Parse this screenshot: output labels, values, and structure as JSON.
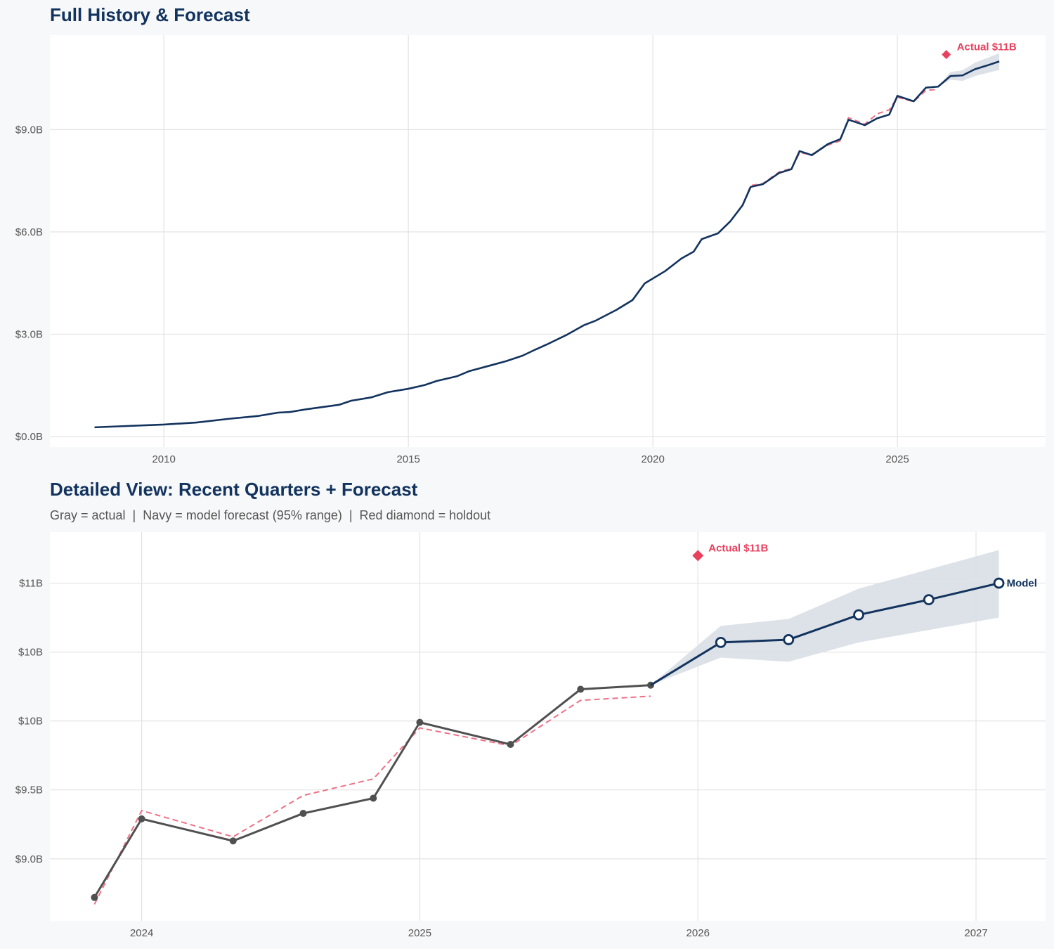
{
  "colors": {
    "background": "#f7f8fa",
    "navy": "#12335e",
    "red": "#e8415e",
    "gray": "#505050",
    "band": "#d9dfe6",
    "grid": "#e3e3e3"
  },
  "chart_data": [
    {
      "type": "line",
      "title": "Full History & Forecast",
      "xlim": [
        2007.67,
        2028.03
      ],
      "ylim": [
        -0.31,
        11.77
      ],
      "grid": true,
      "x_ticks": [
        {
          "value": 2010,
          "label": "2010"
        },
        {
          "value": 2015,
          "label": "2015"
        },
        {
          "value": 2020,
          "label": "2020"
        },
        {
          "value": 2025,
          "label": "2025"
        }
      ],
      "y_ticks": [
        {
          "value": 0,
          "label": "$0.0B"
        },
        {
          "value": 3,
          "label": "$3.0B"
        },
        {
          "value": 6,
          "label": "$6.0B"
        },
        {
          "value": 9,
          "label": "$9.0B"
        }
      ],
      "actual": [
        [
          "2008-08",
          0.27
        ],
        [
          "2010-01",
          0.35
        ],
        [
          "2010-09",
          0.41
        ],
        [
          "2011-05",
          0.52
        ],
        [
          "2011-12",
          0.6
        ],
        [
          "2012-05",
          0.7
        ],
        [
          "2012-08",
          0.72
        ],
        [
          "2012-12",
          0.8
        ],
        [
          "2013-08",
          0.93
        ],
        [
          "2013-11",
          1.05
        ],
        [
          "2014-04",
          1.15
        ],
        [
          "2014-08",
          1.3
        ],
        [
          "2015-01",
          1.4
        ],
        [
          "2015-05",
          1.51
        ],
        [
          "2015-08",
          1.63
        ],
        [
          "2016-01",
          1.77
        ],
        [
          "2016-04",
          1.92
        ],
        [
          "2016-09",
          2.08
        ],
        [
          "2017-01",
          2.21
        ],
        [
          "2017-05",
          2.37
        ],
        [
          "2017-08",
          2.54
        ],
        [
          "2017-11",
          2.7
        ],
        [
          "2018-04",
          2.99
        ],
        [
          "2018-08",
          3.26
        ],
        [
          "2018-11",
          3.4
        ],
        [
          "2019-04",
          3.71
        ],
        [
          "2019-08",
          4.0
        ],
        [
          "2019-11",
          4.49
        ],
        [
          "2020-04",
          4.85
        ],
        [
          "2020-08",
          5.22
        ],
        [
          "2020-11",
          5.42
        ],
        [
          "2021-01",
          5.79
        ],
        [
          "2021-05",
          5.96
        ],
        [
          "2021-08",
          6.31
        ],
        [
          "2021-11",
          6.78
        ],
        [
          "2022-01",
          7.32
        ],
        [
          "2022-04",
          7.4
        ],
        [
          "2022-08",
          7.73
        ],
        [
          "2022-11",
          7.84
        ],
        [
          "2023-01",
          8.37
        ],
        [
          "2023-04",
          8.25
        ],
        [
          "2023-08",
          8.58
        ],
        [
          "2023-11",
          8.72
        ],
        [
          "2024-01",
          9.29
        ],
        [
          "2024-05",
          9.13
        ],
        [
          "2024-08",
          9.33
        ],
        [
          "2024-11",
          9.44
        ],
        [
          "2025-01",
          9.99
        ],
        [
          "2025-05",
          9.83
        ],
        [
          "2025-08",
          10.23
        ],
        [
          "2025-11",
          10.26
        ]
      ],
      "fitted": [
        [
          "2022-01",
          7.36
        ],
        [
          "2022-04",
          7.42
        ],
        [
          "2022-08",
          7.76
        ],
        [
          "2022-11",
          7.86
        ],
        [
          "2023-01",
          8.32
        ],
        [
          "2023-04",
          8.27
        ],
        [
          "2023-08",
          8.55
        ],
        [
          "2023-11",
          8.67
        ],
        [
          "2024-01",
          9.35
        ],
        [
          "2024-05",
          9.16
        ],
        [
          "2024-08",
          9.46
        ],
        [
          "2024-11",
          9.58
        ],
        [
          "2025-01",
          9.95
        ],
        [
          "2025-05",
          9.82
        ],
        [
          "2025-08",
          10.15
        ],
        [
          "2025-11",
          10.18
        ]
      ],
      "forecast": [
        [
          "2025-11",
          10.26
        ],
        [
          "2026-02",
          10.57
        ],
        [
          "2026-05",
          10.59
        ],
        [
          "2026-08",
          10.77
        ],
        [
          "2026-11",
          10.88
        ],
        [
          "2027-02",
          11.0
        ]
      ],
      "band_upper": [
        10.26,
        10.69,
        10.74,
        10.96,
        11.1,
        11.24
      ],
      "band_lower": [
        10.26,
        10.46,
        10.43,
        10.57,
        10.66,
        10.75
      ],
      "holdout": {
        "date": "2026-01",
        "value": 11.2,
        "label": "Actual $11B"
      }
    },
    {
      "type": "line",
      "title": "Detailed View: Recent Quarters + Forecast",
      "subtitle": "Gray = actual  |  Navy = model forecast (95% range)  |  Red diamond = holdout",
      "xlim": [
        2023.67,
        2027.25
      ],
      "ylim": [
        8.55,
        11.37
      ],
      "grid": true,
      "x_ticks": [
        {
          "value": 2024,
          "label": "2024"
        },
        {
          "value": 2025,
          "label": "2025"
        },
        {
          "value": 2026,
          "label": "2026"
        },
        {
          "value": 2027,
          "label": "2027"
        }
      ],
      "y_ticks": [
        {
          "value": 9.0,
          "label": "$9.0B"
        },
        {
          "value": 9.5,
          "label": "$9.5B"
        },
        {
          "value": 10.0,
          "label": "$10B"
        },
        {
          "value": 10.5,
          "label": "$10B"
        },
        {
          "value": 11.0,
          "label": "$11B"
        }
      ],
      "actual": [
        [
          "2023-10-31",
          8.72
        ],
        [
          "2024-01-01",
          9.29
        ],
        [
          "2024-04-30",
          9.13
        ],
        [
          "2024-07-31",
          9.33
        ],
        [
          "2024-10-31",
          9.44
        ],
        [
          "2025-01-01",
          9.99
        ],
        [
          "2025-04-30",
          9.83
        ],
        [
          "2025-07-31",
          10.23
        ],
        [
          "2025-10-31",
          10.26
        ]
      ],
      "fitted": [
        [
          "2023-10-31",
          8.67
        ],
        [
          "2024-01-01",
          9.35
        ],
        [
          "2024-04-30",
          9.16
        ],
        [
          "2024-07-31",
          9.46
        ],
        [
          "2024-10-31",
          9.58
        ],
        [
          "2025-01-01",
          9.95
        ],
        [
          "2025-04-30",
          9.82
        ],
        [
          "2025-07-31",
          10.15
        ],
        [
          "2025-10-31",
          10.18
        ]
      ],
      "forecast": [
        [
          "2025-10-31",
          10.26
        ],
        [
          "2026-01-31",
          10.57
        ],
        [
          "2026-04-30",
          10.59
        ],
        [
          "2026-07-31",
          10.77
        ],
        [
          "2026-10-31",
          10.88
        ],
        [
          "2027-01-31",
          11.0
        ]
      ],
      "band_upper": [
        10.26,
        10.69,
        10.74,
        10.96,
        11.1,
        11.24
      ],
      "band_lower": [
        10.26,
        10.46,
        10.43,
        10.57,
        10.66,
        10.75
      ],
      "holdout": {
        "date": "2026-01-01",
        "value": 11.2,
        "label": "Actual $11B"
      },
      "forecast_label": "Model"
    }
  ]
}
